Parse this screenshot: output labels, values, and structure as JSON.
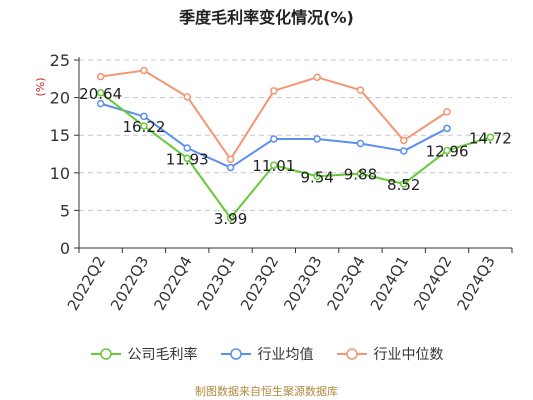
{
  "title": "季度毛利率变化情况(%)",
  "source": "制图数据来自恒生聚源数据库",
  "chart_data": {
    "type": "line",
    "ylabel": "(%)",
    "ylim": [
      0,
      25
    ],
    "yticks": [
      0,
      5,
      10,
      15,
      20,
      25
    ],
    "grid": true,
    "legend_position": "bottom",
    "categories": [
      "2022Q2",
      "2022Q3",
      "2022Q4",
      "2023Q1",
      "2023Q2",
      "2023Q3",
      "2023Q4",
      "2024Q1",
      "2024Q2",
      "2024Q3"
    ],
    "series": [
      {
        "name": "公司毛利率",
        "color": "#66c93a",
        "values": [
          20.64,
          16.22,
          11.93,
          3.99,
          11.01,
          9.54,
          9.88,
          8.52,
          12.96,
          14.72
        ],
        "labels": [
          "20.64",
          "16.22",
          "11.93",
          "3.99",
          "11.01",
          "9.54",
          "9.88",
          "8.52",
          "12.96",
          "14.72"
        ]
      },
      {
        "name": "行业均值",
        "color": "#5b8ff0",
        "values": [
          19.2,
          17.5,
          13.3,
          10.7,
          14.5,
          14.5,
          13.9,
          12.9,
          15.9,
          null
        ]
      },
      {
        "name": "行业中位数",
        "color": "#f59573",
        "values": [
          22.8,
          23.6,
          20.1,
          11.8,
          20.9,
          22.7,
          21.0,
          14.3,
          18.1,
          null
        ]
      }
    ]
  }
}
